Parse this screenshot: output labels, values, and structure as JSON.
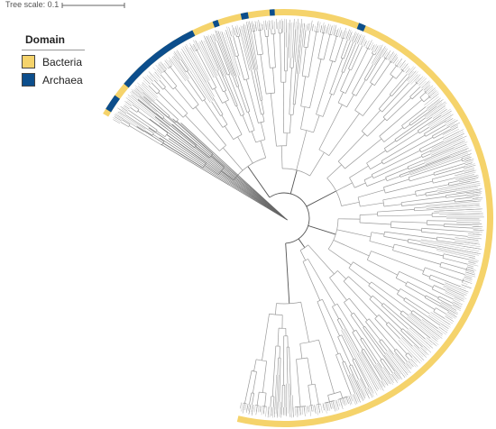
{
  "scale": {
    "label": "Tree scale: 0.1"
  },
  "legend": {
    "title": "Domain",
    "items": [
      {
        "label": "Bacteria",
        "color": "#F5D36B"
      },
      {
        "label": "Archaea",
        "color": "#0C4E8C"
      }
    ]
  },
  "colors": {
    "branch": "#9a9a9a",
    "branch_light": "#b8b8b8",
    "root": "#555555"
  }
}
